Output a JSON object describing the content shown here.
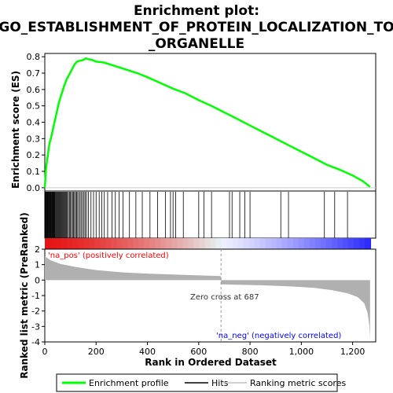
{
  "chart_data": {
    "type": "line",
    "title_lines": [
      "Enrichment plot:",
      "GO_ESTABLISHMENT_OF_PROTEIN_LOCALIZATION_TO",
      "_ORGANELLE"
    ],
    "xlabel": "Rank in Ordered Dataset",
    "es_panel": {
      "ylabel": "Enrichment score (ES)",
      "ylim": [
        -0.02,
        0.82
      ],
      "yticks": [
        0.0,
        0.1,
        0.2,
        0.3,
        0.4,
        0.5,
        0.6,
        0.7,
        0.8
      ],
      "series": {
        "name": "Enrichment profile",
        "color": "#00ff00",
        "x": [
          0,
          5,
          10,
          18,
          25,
          35,
          45,
          55,
          65,
          75,
          85,
          95,
          105,
          115,
          125,
          135,
          150,
          160,
          170,
          185,
          200,
          230,
          260,
          290,
          320,
          360,
          400,
          450,
          500,
          550,
          600,
          650,
          700,
          750,
          800,
          850,
          900,
          950,
          1000,
          1050,
          1100,
          1150,
          1200,
          1240,
          1268
        ],
        "y": [
          0.0,
          0.12,
          0.18,
          0.27,
          0.31,
          0.38,
          0.45,
          0.52,
          0.57,
          0.62,
          0.66,
          0.69,
          0.72,
          0.75,
          0.77,
          0.775,
          0.78,
          0.79,
          0.785,
          0.78,
          0.77,
          0.765,
          0.75,
          0.735,
          0.72,
          0.7,
          0.675,
          0.64,
          0.605,
          0.575,
          0.535,
          0.5,
          0.46,
          0.42,
          0.38,
          0.34,
          0.3,
          0.26,
          0.22,
          0.18,
          0.14,
          0.11,
          0.075,
          0.04,
          0.005
        ]
      }
    },
    "hits": [
      2,
      4,
      6,
      8,
      10,
      12,
      14,
      16,
      18,
      20,
      22,
      24,
      26,
      28,
      30,
      32,
      34,
      36,
      38,
      40,
      43,
      46,
      49,
      52,
      55,
      58,
      61,
      64,
      67,
      70,
      73,
      76,
      79,
      82,
      85,
      88,
      92,
      96,
      100,
      104,
      108,
      112,
      116,
      120,
      124,
      128,
      133,
      138,
      143,
      148,
      153,
      158,
      163,
      170,
      180,
      190,
      200,
      212,
      222,
      232,
      245,
      262,
      275,
      290,
      305,
      330,
      355,
      380,
      410,
      440,
      470,
      490,
      500,
      510,
      540,
      600,
      620,
      650,
      720,
      730,
      760,
      780,
      800,
      920,
      950,
      1090,
      1130,
      1180
    ],
    "metric_panel": {
      "ylabel": "Ranked list metric (PreRanked)",
      "ylim": [
        -4,
        2
      ],
      "yticks": [
        -4,
        -3,
        -2,
        -1,
        0,
        1,
        2
      ],
      "shape_x": [
        0,
        20,
        60,
        120,
        200,
        300,
        400,
        500,
        600,
        686,
        687,
        750,
        850,
        950,
        1050,
        1120,
        1180,
        1220,
        1245,
        1258,
        1265,
        1268
      ],
      "shape_y": [
        1.55,
        1.3,
        1.05,
        0.85,
        0.65,
        0.5,
        0.42,
        0.36,
        0.3,
        0.26,
        -0.28,
        -0.3,
        -0.34,
        -0.4,
        -0.5,
        -0.65,
        -0.85,
        -1.1,
        -1.5,
        -2.1,
        -2.9,
        -3.7
      ],
      "pos_label": "'na_pos' (positively correlated)",
      "neg_label": "'na_neg' (negatively correlated)",
      "zero_cross_label": "Zero cross at 687",
      "zero_cross": 687
    },
    "xlim": [
      0,
      1290
    ],
    "xticks": [
      0,
      200,
      400,
      600,
      800,
      1000,
      1200
    ],
    "xtick_labels": [
      "0",
      "200",
      "400",
      "600",
      "800",
      "1,000",
      "1,200"
    ],
    "legend": {
      "placement": "bottom",
      "entries": [
        {
          "name": "Enrichment profile",
          "color": "#00ff00"
        },
        {
          "name": "Hits",
          "color": "#000000"
        },
        {
          "name": "Ranking metric scores",
          "color": "#c0c0c0"
        }
      ]
    },
    "colors": {
      "pos_text": "#ff0000",
      "neg_text": "#0000ff",
      "fill": "#b0b0b0"
    }
  }
}
